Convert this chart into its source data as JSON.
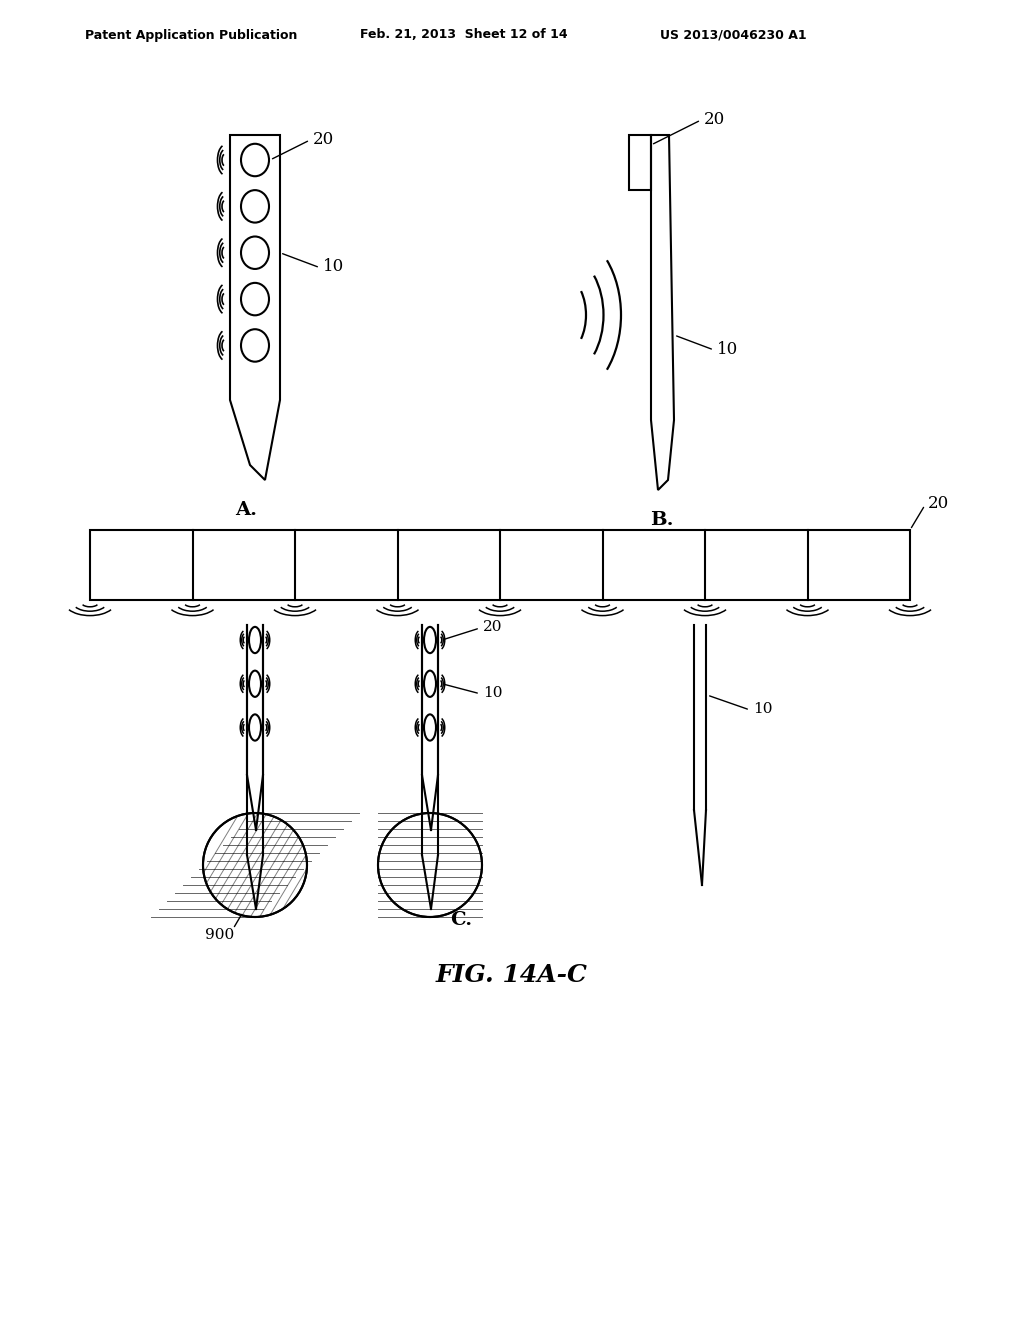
{
  "title": "FIG. 14A-C",
  "header_left": "Patent Application Publication",
  "header_mid": "Feb. 21, 2013  Sheet 12 of 14",
  "header_right": "US 2013/0046230 A1",
  "background": "#ffffff",
  "line_color": "#000000",
  "label_A": "A.",
  "label_B": "B.",
  "label_C": "C.",
  "label_20": "20",
  "label_10": "10",
  "label_900": "900"
}
